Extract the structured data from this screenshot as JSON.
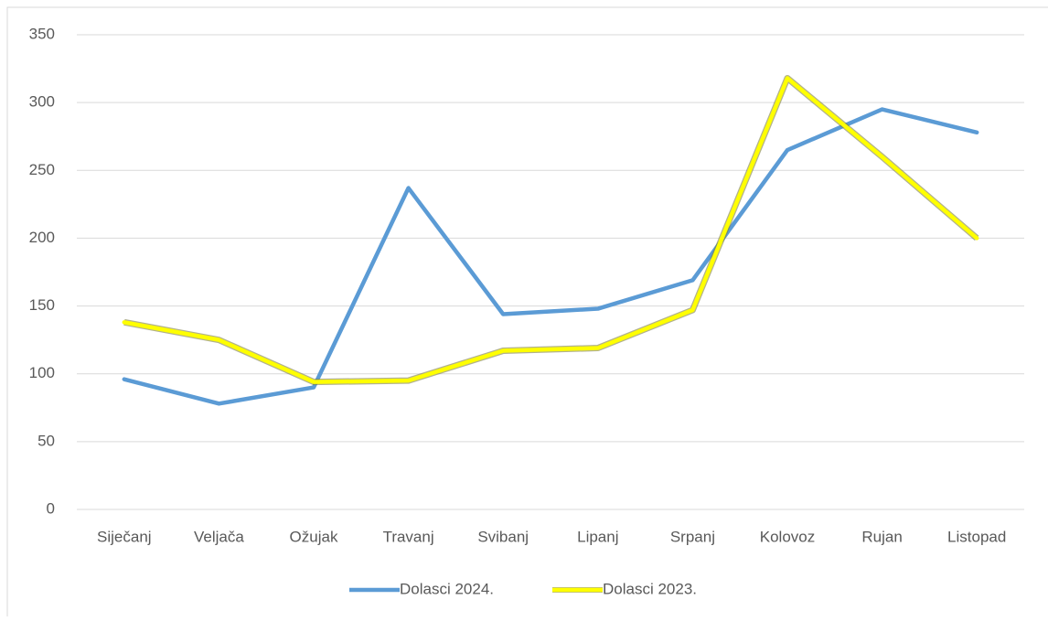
{
  "chart_data": {
    "type": "line",
    "categories": [
      "Siječanj",
      "Veljača",
      "Ožujak",
      "Travanj",
      "Svibanj",
      "Lipanj",
      "Srpanj",
      "Kolovoz",
      "Rujan",
      "Listopad"
    ],
    "series": [
      {
        "name": "Dolasci 2024.",
        "color": "#5b9bd5",
        "values": [
          96,
          78,
          90,
          237,
          144,
          148,
          169,
          265,
          295,
          278
        ]
      },
      {
        "name": "Dolasci 2023.",
        "color": "#ffff00",
        "values": [
          138,
          125,
          94,
          95,
          117,
          119,
          147,
          318,
          260,
          200
        ]
      }
    ],
    "ylim": [
      0,
      350
    ],
    "yticks": [
      0,
      50,
      100,
      150,
      200,
      250,
      300,
      350
    ],
    "grid": true,
    "legend": "bottom"
  }
}
